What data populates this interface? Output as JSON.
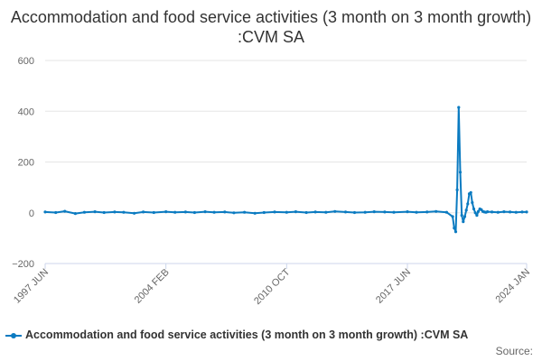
{
  "chart_data": {
    "type": "line",
    "title": "Accommodation and food service activities (3 month on 3 month growth) :CVM SA",
    "xlabel": "",
    "ylabel": "",
    "ylim": [
      -200,
      600
    ],
    "yticks": [
      "600",
      "400",
      "200",
      "0",
      "−200"
    ],
    "xticks": [
      "1997 JUN",
      "2004 FEB",
      "2010 OCT",
      "2017 JUN",
      "2024 JAN"
    ],
    "grid": true,
    "legend_position": "bottom",
    "series": [
      {
        "name": "Accommodation and food service activities (3 month on 3 month growth) :CVM SA",
        "color": "#0b7bc1",
        "x": [
          "1997 JUN",
          "1998 JAN",
          "1998 JUL",
          "1999 FEB",
          "1999 AUG",
          "2000 MAR",
          "2000 SEP",
          "2001 APR",
          "2001 OCT",
          "2002 MAY",
          "2002 NOV",
          "2003 JUN",
          "2004 FEB",
          "2004 AUG",
          "2005 MAR",
          "2005 SEP",
          "2006 APR",
          "2006 OCT",
          "2007 MAY",
          "2007 NOV",
          "2008 JUN",
          "2009 JAN",
          "2009 JUL",
          "2010 FEB",
          "2010 OCT",
          "2011 APR",
          "2011 NOV",
          "2012 MAY",
          "2012 DEC",
          "2013 JUN",
          "2014 JAN",
          "2014 JUL",
          "2015 FEB",
          "2015 AUG",
          "2016 MAR",
          "2016 SEP",
          "2017 JUN",
          "2017 DEC",
          "2018 JUL",
          "2019 JAN",
          "2019 AUG",
          "2019 DEC",
          "2020 JAN",
          "2020 FEB",
          "2020 MAR",
          "2020 APR",
          "2020 MAY",
          "2020 JUN",
          "2020 JUL",
          "2020 AUG",
          "2020 SEP",
          "2020 OCT",
          "2020 NOV",
          "2020 DEC",
          "2021 JAN",
          "2021 FEB",
          "2021 MAR",
          "2021 APR",
          "2021 MAY",
          "2021 JUN",
          "2021 JUL",
          "2021 AUG",
          "2021 SEP",
          "2021 OCT",
          "2021 NOV",
          "2022 FEB",
          "2022 JUN",
          "2022 OCT",
          "2023 FEB",
          "2023 JUN",
          "2023 OCT",
          "2024 JAN"
        ],
        "values": [
          3,
          1,
          6,
          -3,
          2,
          4,
          1,
          3,
          2,
          -2,
          3,
          1,
          4,
          2,
          3,
          1,
          4,
          2,
          3,
          0,
          2,
          -2,
          1,
          3,
          2,
          4,
          1,
          3,
          2,
          5,
          3,
          1,
          2,
          4,
          3,
          2,
          4,
          2,
          3,
          5,
          2,
          -15,
          -60,
          -75,
          90,
          415,
          160,
          -10,
          -35,
          -15,
          10,
          35,
          75,
          80,
          40,
          15,
          0,
          -10,
          5,
          15,
          12,
          5,
          3,
          2,
          4,
          3,
          2,
          4,
          3,
          2,
          3,
          3
        ]
      }
    ]
  },
  "legend": {
    "label": "Accommodation and food service activities (3 month on 3 month growth) :CVM SA"
  },
  "source_label": "Source:"
}
